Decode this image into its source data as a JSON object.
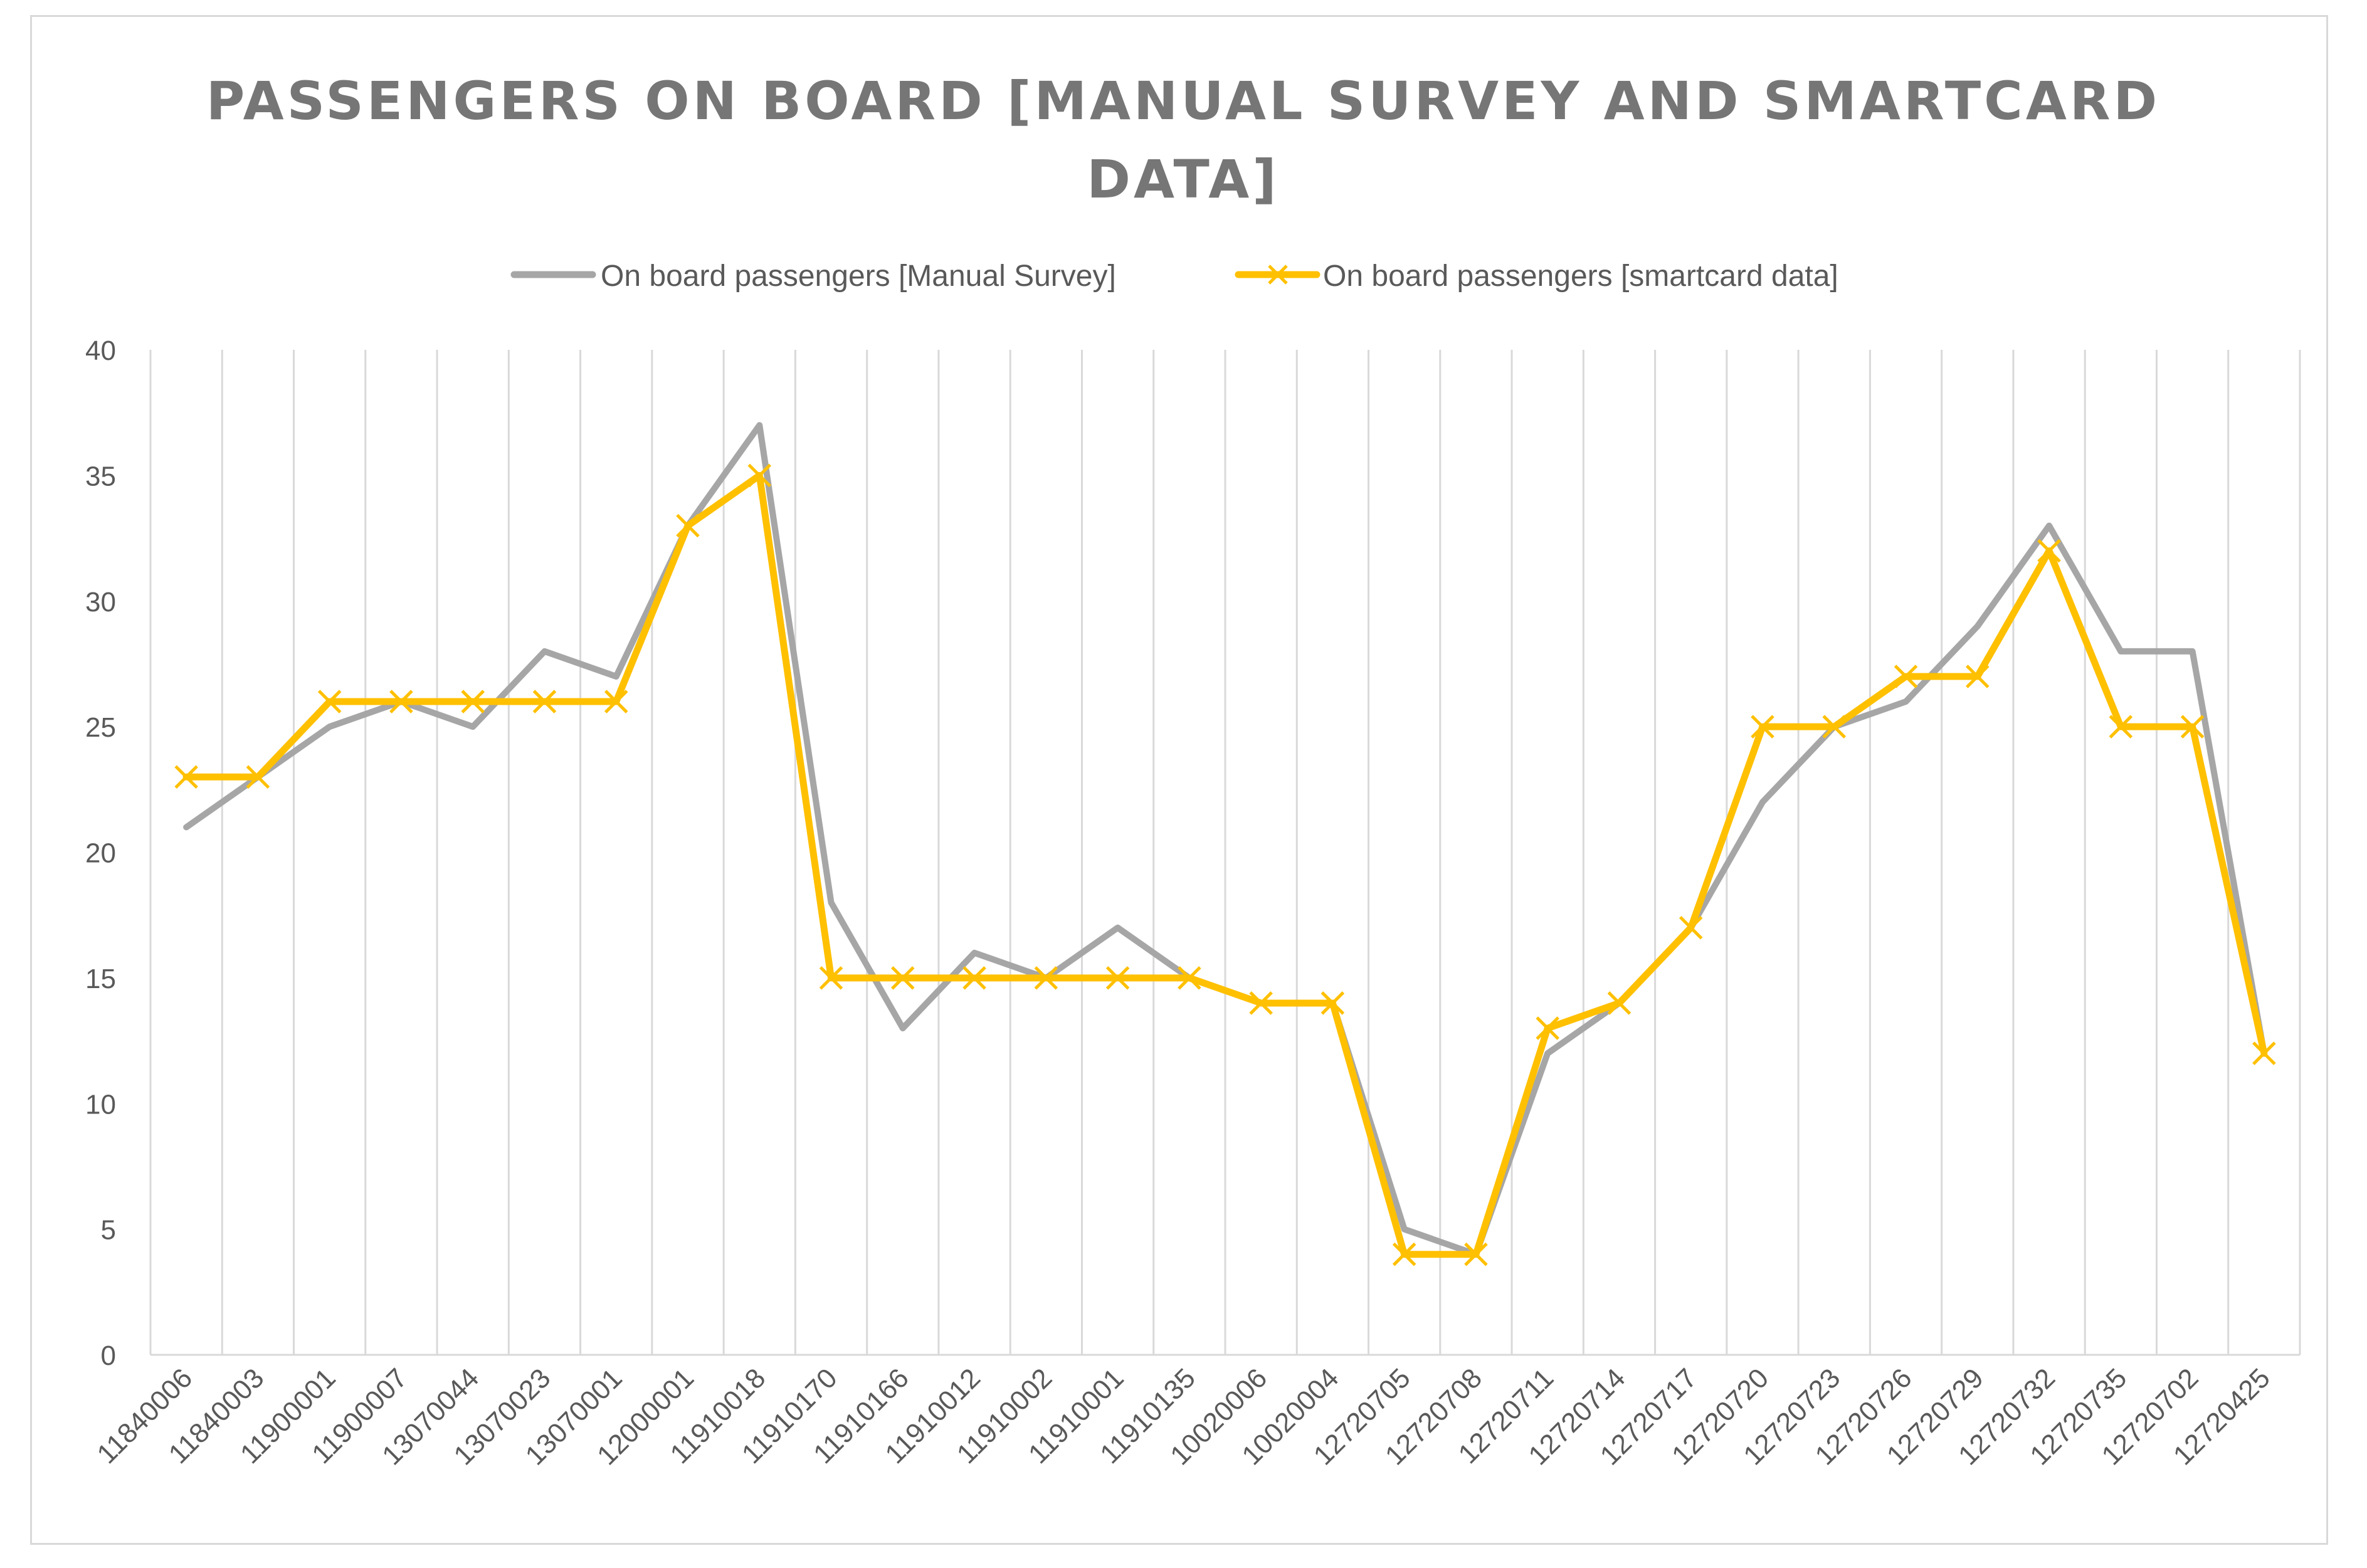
{
  "chart_data": {
    "type": "line",
    "title_lines": [
      "PASSENGERS ON BOARD [MANUAL SURVEY AND SMARTCARD",
      "DATA]"
    ],
    "xlabel": "",
    "ylabel": "",
    "ylim": [
      0,
      40
    ],
    "yticks": [
      0,
      5,
      10,
      15,
      20,
      25,
      30,
      35,
      40
    ],
    "grid": "vertical",
    "legend_position": "top",
    "categories": [
      "11840006",
      "11840003",
      "11900001",
      "11900007",
      "13070044",
      "13070023",
      "13070001",
      "12000001",
      "11910018",
      "11910170",
      "11910166",
      "11910012",
      "11910002",
      "11910001",
      "11910135",
      "10020006",
      "10020004",
      "12720705",
      "12720708",
      "12720711",
      "12720714",
      "12720717",
      "12720720",
      "12720723",
      "12720726",
      "12720729",
      "12720732",
      "12720735",
      "12720702",
      "12720425"
    ],
    "series": [
      {
        "name": "On board passengers [Manual Survey]",
        "color": "#a6a6a6",
        "marker": "none",
        "values": [
          21,
          23,
          25,
          26,
          25,
          28,
          27,
          33,
          37,
          18,
          13,
          16,
          15,
          17,
          15,
          14,
          14,
          5,
          4,
          12,
          14,
          17,
          22,
          25,
          26,
          29,
          33,
          28,
          28,
          12
        ]
      },
      {
        "name": "On board passengers [smartcard data]",
        "color": "#ffc000",
        "marker": "x",
        "values": [
          23,
          23,
          26,
          26,
          26,
          26,
          26,
          33,
          35,
          15,
          15,
          15,
          15,
          15,
          15,
          14,
          14,
          4,
          4,
          13,
          14,
          17,
          25,
          25,
          27,
          27,
          32,
          25,
          25,
          12
        ]
      }
    ]
  }
}
